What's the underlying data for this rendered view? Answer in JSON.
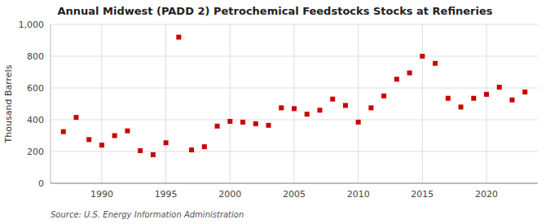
{
  "chart_data": {
    "type": "scatter",
    "title": "Annual Midwest (PADD 2) Petrochemical Feedstocks Stocks at Refineries",
    "ylabel": "Thousand Barrels",
    "annotations": [
      "Source: U.S. Energy Information Administration"
    ],
    "x": [
      1987,
      1988,
      1989,
      1990,
      1991,
      1992,
      1993,
      1994,
      1995,
      1996,
      1997,
      1998,
      1999,
      2000,
      2001,
      2002,
      2003,
      2004,
      2005,
      2006,
      2007,
      2008,
      2009,
      2010,
      2011,
      2012,
      2013,
      2014,
      2015,
      2016,
      2017,
      2018,
      2019,
      2020,
      2021,
      2022,
      2023
    ],
    "values": [
      325,
      415,
      275,
      240,
      300,
      330,
      205,
      180,
      255,
      920,
      210,
      230,
      360,
      390,
      385,
      375,
      365,
      475,
      470,
      435,
      460,
      530,
      490,
      385,
      475,
      550,
      655,
      695,
      800,
      755,
      535,
      480,
      535,
      560,
      605,
      525,
      575
    ],
    "color": "#cc0000",
    "marker": "square",
    "grid": true,
    "xlim": [
      1986,
      2024
    ],
    "ylim": [
      0,
      1000
    ],
    "xticks": [
      1990,
      1995,
      2000,
      2005,
      2010,
      2015,
      2020
    ],
    "yticks": [
      0,
      200,
      400,
      600,
      800,
      {
        "value": 1000,
        "label": "1,000"
      }
    ]
  }
}
